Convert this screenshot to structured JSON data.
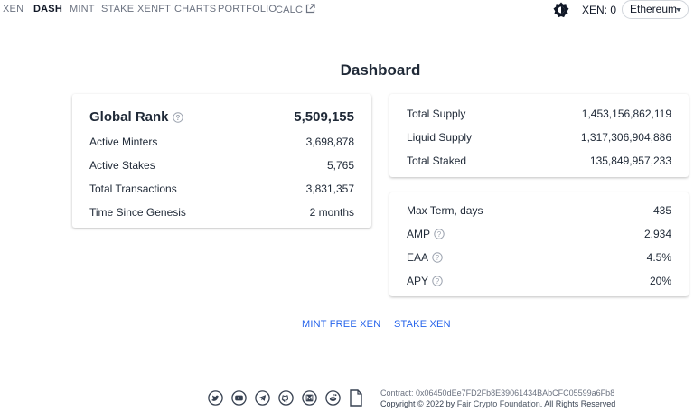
{
  "nav": {
    "items": [
      "XEN",
      "DASH",
      "MINT",
      "STAKE",
      "XENFT",
      "CHARTS",
      "PORTFOLIO",
      "CALC"
    ],
    "active": "DASH",
    "xen_balance": "XEN: 0",
    "network": "Ethereum"
  },
  "page": {
    "title": "Dashboard"
  },
  "global_card": {
    "rank_label": "Global Rank",
    "rank_value": "5,509,155",
    "rows": [
      {
        "label": "Active Minters",
        "value": "3,698,878"
      },
      {
        "label": "Active Stakes",
        "value": "5,765"
      },
      {
        "label": "Total Transactions",
        "value": "3,831,357"
      },
      {
        "label": "Time Since Genesis",
        "value": "2 months"
      }
    ]
  },
  "supply_card": {
    "rows": [
      {
        "label": "Total Supply",
        "value": "1,453,156,862,119"
      },
      {
        "label": "Liquid Supply",
        "value": "1,317,306,904,886"
      },
      {
        "label": "Total Staked",
        "value": "135,849,957,233"
      }
    ]
  },
  "params_card": {
    "rows": [
      {
        "label": "Max Term, days",
        "value": "435"
      },
      {
        "label": "AMP",
        "value": "2,934"
      },
      {
        "label": "EAA",
        "value": "4.5%"
      },
      {
        "label": "APY",
        "value": "20%"
      }
    ]
  },
  "actions": {
    "mint": "MINT FREE XEN",
    "stake": "STAKE XEN"
  },
  "footer": {
    "icons": [
      "twitter-icon",
      "youtube-icon",
      "telegram-icon",
      "github-icon",
      "medium-icon",
      "reddit-icon",
      "document-icon"
    ],
    "contract_label": "Contract:",
    "contract_address": "0x06450dEe7FD2Fb8E39061434BAbCFC05599a6Fb8",
    "copyright_prefix": "Copyright © 2022 by",
    "foundation": "Fair Crypto Foundation",
    "copyright_suffix": ". All Rights Reserved"
  },
  "colors": {
    "link": "#2563eb",
    "text": "#1f2937",
    "muted": "#6b7280"
  }
}
